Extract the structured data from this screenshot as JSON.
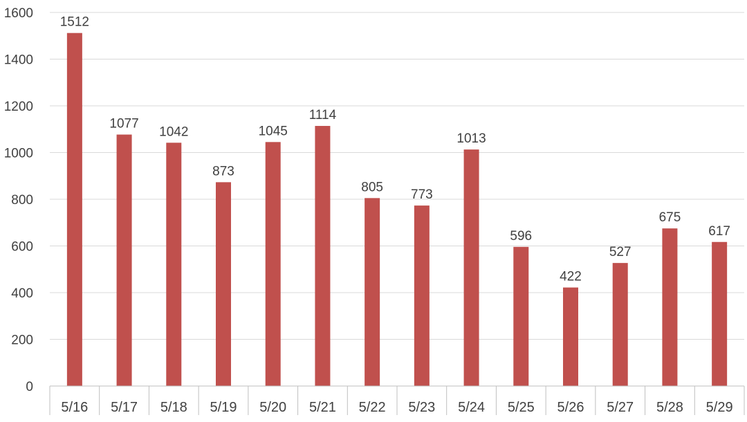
{
  "chart_data": {
    "type": "bar",
    "title": "",
    "xlabel": "",
    "ylabel": "",
    "categories": [
      "5/16",
      "5/17",
      "5/18",
      "5/19",
      "5/20",
      "5/21",
      "5/22",
      "5/23",
      "5/24",
      "5/25",
      "5/26",
      "5/27",
      "5/28",
      "5/29"
    ],
    "values": [
      1512,
      1077,
      1042,
      873,
      1045,
      1114,
      805,
      773,
      1013,
      596,
      422,
      527,
      675,
      617
    ],
    "ylim": [
      0,
      1600
    ],
    "yticks": [
      0,
      200,
      400,
      600,
      800,
      1000,
      1200,
      1400,
      1600
    ],
    "grid": true,
    "legend": "none",
    "data_labels": true,
    "colors": {
      "bar": "#c0504d",
      "grid": "#d9d9d9",
      "axis": "#bfbfbf",
      "text": "#404040"
    }
  }
}
